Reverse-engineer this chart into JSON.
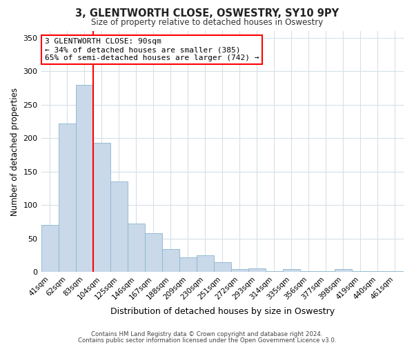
{
  "title": "3, GLENTWORTH CLOSE, OSWESTRY, SY10 9PY",
  "subtitle": "Size of property relative to detached houses in Oswestry",
  "xlabel": "Distribution of detached houses by size in Oswestry",
  "ylabel": "Number of detached properties",
  "bar_labels": [
    "41sqm",
    "62sqm",
    "83sqm",
    "104sqm",
    "125sqm",
    "146sqm",
    "167sqm",
    "188sqm",
    "209sqm",
    "230sqm",
    "251sqm",
    "272sqm",
    "293sqm",
    "314sqm",
    "335sqm",
    "356sqm",
    "377sqm",
    "398sqm",
    "419sqm",
    "440sqm",
    "461sqm"
  ],
  "bar_values": [
    70,
    222,
    280,
    193,
    135,
    73,
    58,
    34,
    22,
    25,
    15,
    5,
    6,
    1,
    5,
    1,
    1,
    5,
    1,
    1,
    1
  ],
  "bar_color": "#c9d9ea",
  "bar_edge_color": "#8ab4cc",
  "red_line_index": 2,
  "annotation_title": "3 GLENTWORTH CLOSE: 90sqm",
  "annotation_line1": "← 34% of detached houses are smaller (385)",
  "annotation_line2": "65% of semi-detached houses are larger (742) →",
  "ylim": [
    0,
    360
  ],
  "yticks": [
    0,
    50,
    100,
    150,
    200,
    250,
    300,
    350
  ],
  "footer1": "Contains HM Land Registry data © Crown copyright and database right 2024.",
  "footer2": "Contains public sector information licensed under the Open Government Licence v3.0.",
  "bg_color": "#ffffff",
  "grid_color": "#d5dfe8"
}
